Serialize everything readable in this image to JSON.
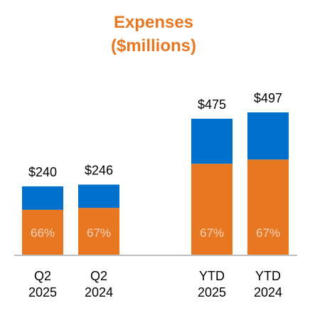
{
  "chart_data": {
    "type": "bar",
    "stacked": true,
    "title": "Expenses",
    "subtitle": "($millions)",
    "categories": [
      [
        "Q2",
        "2025"
      ],
      [
        "Q2",
        "2024"
      ],
      [
        "YTD",
        "2025"
      ],
      [
        "YTD",
        "2024"
      ]
    ],
    "groups": [
      [
        0,
        1
      ],
      [
        2,
        3
      ]
    ],
    "totals": [
      240,
      246,
      475,
      497
    ],
    "total_labels": [
      "$240",
      "$246",
      "$475",
      "$497"
    ],
    "lower_share_percent": [
      66,
      67,
      67,
      67
    ],
    "lower_share_labels": [
      "66%",
      "67%",
      "67%",
      "67%"
    ],
    "colors": {
      "title": "#E87722",
      "lower_segment": "#E87722",
      "upper_segment": "#0070CC",
      "baseline": "#BFBFBF",
      "pct_label": "#F3D3BB"
    },
    "legend": "none",
    "grid": false
  }
}
